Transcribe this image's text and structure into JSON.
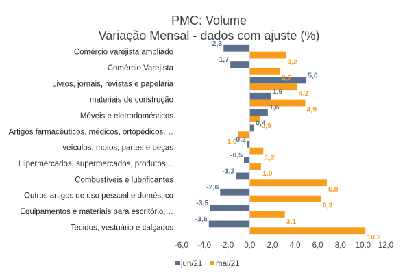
{
  "chart_data": {
    "type": "bar",
    "orientation": "horizontal",
    "title": "PMC: Volume",
    "subtitle": "Variação Mensal - dados com ajuste (%)",
    "categories": [
      "Comércio varejista ampliado",
      "Comércio Varejista",
      "Livros, jornais, revistas e papelaria",
      "materiais de construção",
      "Móveis e eletrodomésticos",
      "Artigos farmacêuticos, médicos, ortopédicos,…",
      "veículos, motos, partes e peças",
      "Hipermercados, supermercados, produtos…",
      "Combustíveis e lubrificantes",
      "Outros artigos de uso pessoal e doméstico",
      "Equipamentos e materiais para escritório,…",
      "Tecidos, vestuário e calçados"
    ],
    "series": [
      {
        "name": "jun/21",
        "color": "#5a6f8c",
        "values": [
          -2.3,
          -1.7,
          5.0,
          1.9,
          1.6,
          0.4,
          -0.2,
          -0.5,
          -1.2,
          -2.6,
          -3.5,
          -3.6
        ],
        "labels": [
          "-2,3",
          "-1,7",
          "5,0",
          "1,9",
          "1,6",
          "0,4",
          "-0,2",
          "-0,5",
          "-1,2",
          "-2,6",
          "-3,5",
          "-3,6"
        ]
      },
      {
        "name": "mai/21",
        "color": "#f89c1c",
        "values": [
          3.2,
          2.7,
          4.2,
          4.9,
          0.9,
          -1.0,
          1.2,
          1.0,
          6.8,
          6.3,
          3.1,
          10.2
        ],
        "labels": [
          "3,2",
          "2,7",
          "4,2",
          "4,9",
          "0,9",
          "-1,0",
          "1,2",
          "1,0",
          "6,8",
          "6,3",
          "3,1",
          "10,2"
        ]
      }
    ],
    "xlim": [
      -6,
      12
    ],
    "xticks": [
      -6,
      -4,
      -2,
      0,
      2,
      4,
      6,
      8,
      10,
      12
    ],
    "xtick_labels": [
      "-6,0",
      "-4,0",
      "-2,0",
      "0,0",
      "2,0",
      "4,0",
      "6,0",
      "8,0",
      "10,0",
      "12,0"
    ],
    "grid": false,
    "legend_position": "bottom"
  }
}
